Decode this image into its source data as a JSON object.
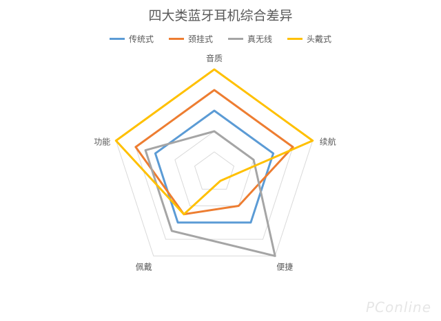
{
  "chart_data": {
    "type": "radar",
    "title": "四大类蓝牙耳机综合差异",
    "axes": [
      "音质",
      "续航",
      "便捷",
      "佩戴",
      "功能"
    ],
    "series": [
      {
        "name": "传统式",
        "color": "#5b9bd5",
        "values": [
          3,
          3,
          3,
          3,
          3
        ]
      },
      {
        "name": "颈挂式",
        "color": "#ed7d31",
        "values": [
          4,
          4,
          2,
          2.5,
          4
        ]
      },
      {
        "name": "真无线",
        "color": "#a5a5a5",
        "values": [
          2,
          2,
          5,
          3.5,
          3.5
        ]
      },
      {
        "name": "头戴式",
        "color": "#ffc000",
        "values": [
          5,
          5,
          0.5,
          2.5,
          5
        ]
      }
    ],
    "rlim": [
      0,
      5
    ],
    "rings": 5,
    "legend_position": "top"
  },
  "watermark": "PConline"
}
